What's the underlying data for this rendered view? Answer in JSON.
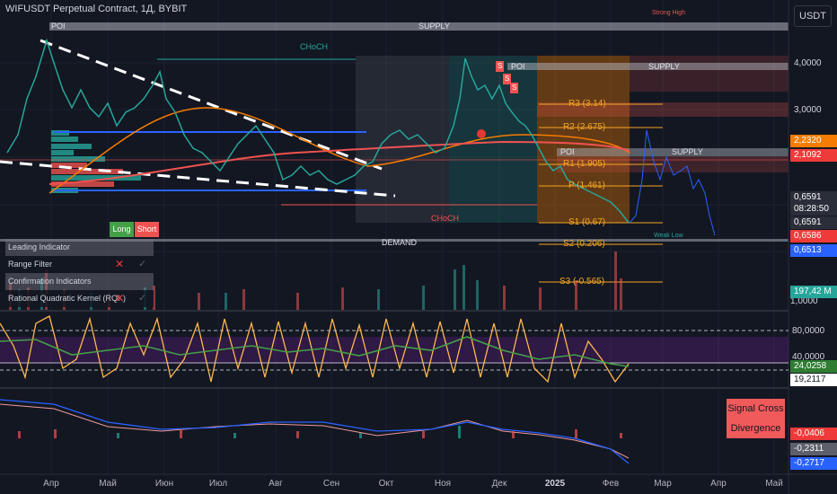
{
  "header": {
    "symbol": "WIFUSDT Perpetual Contract, 1Д, BYBIT"
  },
  "currency_button": "USDT",
  "price_axis": {
    "ticks": [
      "4,0000",
      "3,0000",
      "1,0000",
      "80,0000",
      "40,0000"
    ],
    "tags": [
      {
        "value": "2,2320",
        "color": "#f57c00"
      },
      {
        "value": "2,1092",
        "color": "#ef3a3a"
      },
      {
        "value": "0,6591",
        "color": "#2a2e39"
      },
      {
        "value": "08:28:50",
        "color": "#2a2e39"
      },
      {
        "value": "0,6591",
        "color": "#2a2e39"
      },
      {
        "value": "0,6586",
        "color": "#ef3a3a"
      },
      {
        "value": "0,6513",
        "color": "#2962ff"
      },
      {
        "value": "197,42 M",
        "color": "#26a69a"
      },
      {
        "value": "24,0258",
        "color": "#2e7d32"
      },
      {
        "value": "19,2117",
        "color": "#ffffff"
      },
      {
        "value": "-0,0406",
        "color": "#ef3a3a"
      },
      {
        "value": "-0,2311",
        "color": "#5d606b"
      },
      {
        "value": "-0,2717",
        "color": "#2962ff"
      }
    ]
  },
  "time_axis": [
    "Апр",
    "Май",
    "Июн",
    "Июл",
    "Авг",
    "Сен",
    "Окт",
    "Ноя",
    "Дек",
    "2025",
    "Фев",
    "Мар",
    "Апр",
    "Май"
  ],
  "zones": {
    "poi_left": "POI",
    "supply_top": "SUPPLY",
    "strong_high": "Strong High",
    "poi_right": "POI",
    "supply_mid": "SUPPLY",
    "poi_lower": "POI",
    "supply_lower": "SUPPLY",
    "demand": "DEMAND",
    "weak_low": "Weak Low",
    "choch_top": "CHoCH",
    "choch_bottom": "CHoCH"
  },
  "pivot_levels": [
    "R3 (3.14)",
    "R2 (2.675)",
    "R1 (1.905)",
    "P (1.461)",
    "S1 (0.67)",
    "S2 (0.206)",
    "S3 (-0.565)"
  ],
  "signal_markers": [
    "S",
    "S",
    "S"
  ],
  "indicator_panel": {
    "long_label": "Long",
    "short_label": "Short",
    "rows": [
      {
        "label": "Leading Indicator",
        "type": "header"
      },
      {
        "label": "Range Filter",
        "type": "item",
        "long": "✕",
        "short": "✓"
      },
      {
        "label": "Confirmation Indicators",
        "type": "header"
      },
      {
        "label": "Rational Quadratic Kernel (RQK)",
        "type": "item",
        "long": "✕",
        "short": "✓"
      }
    ]
  },
  "signal_box": {
    "line1": "Signal Cross",
    "line2": "Divergence"
  }
}
